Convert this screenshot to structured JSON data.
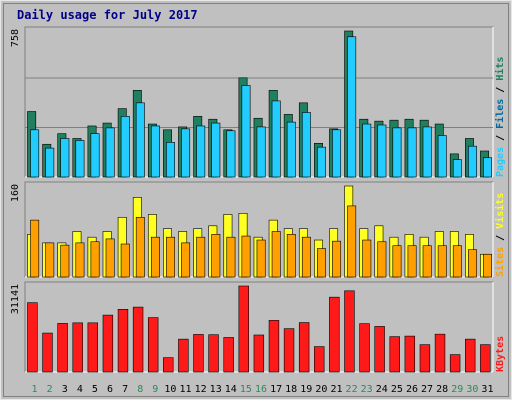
{
  "chart_data": [
    {
      "type": "bar",
      "title": "Daily usage for July 2017",
      "panel": "hits-files-pages",
      "categories": [
        "1",
        "2",
        "3",
        "4",
        "5",
        "6",
        "7",
        "8",
        "9",
        "10",
        "11",
        "12",
        "13",
        "14",
        "15",
        "16",
        "17",
        "18",
        "19",
        "20",
        "21",
        "22",
        "23",
        "24",
        "25",
        "26",
        "27",
        "28",
        "29",
        "30",
        "31"
      ],
      "ymax_label": "758",
      "ylim": [
        0,
        758
      ],
      "grid": true,
      "axis_label_parts": [
        "Pages",
        "Files",
        "Hits"
      ],
      "series": [
        {
          "name": "Hits",
          "color": "#1f7f5f",
          "values": [
            340,
            170,
            225,
            200,
            265,
            280,
            355,
            450,
            275,
            245,
            260,
            315,
            300,
            245,
            515,
            305,
            450,
            325,
            385,
            175,
            250,
            758,
            300,
            290,
            295,
            300,
            295,
            275,
            120,
            200,
            135
          ]
        },
        {
          "name": "Files",
          "color": "#006a9e",
          "values": [
            0,
            0,
            0,
            0,
            0,
            0,
            0,
            0,
            0,
            0,
            0,
            0,
            0,
            0,
            0,
            0,
            0,
            0,
            0,
            0,
            0,
            0,
            0,
            0,
            0,
            0,
            0,
            0,
            0,
            0,
            0
          ]
        },
        {
          "name": "Pages",
          "color": "#22ccff",
          "values": [
            245,
            150,
            200,
            190,
            225,
            255,
            315,
            385,
            265,
            180,
            250,
            265,
            280,
            240,
            475,
            260,
            395,
            285,
            335,
            155,
            245,
            728,
            275,
            270,
            255,
            255,
            260,
            215,
            90,
            160,
            100
          ]
        }
      ],
      "x_highlight_days": [
        "1",
        "2",
        "8",
        "9",
        "15",
        "16",
        "22",
        "23",
        "29",
        "30"
      ],
      "x_highlight_color": "#2a8a5a"
    },
    {
      "type": "bar",
      "panel": "visits-sites",
      "categories": [
        "1",
        "2",
        "3",
        "4",
        "5",
        "6",
        "7",
        "8",
        "9",
        "10",
        "11",
        "12",
        "13",
        "14",
        "15",
        "16",
        "17",
        "18",
        "19",
        "20",
        "21",
        "22",
        "23",
        "24",
        "25",
        "26",
        "27",
        "28",
        "29",
        "30",
        "31"
      ],
      "ymax_label": "160",
      "ylim": [
        0,
        160
      ],
      "axis_label_parts": [
        "Sites",
        "Visits"
      ],
      "series": [
        {
          "name": "Visits",
          "color": "#ffff22",
          "values": [
            75,
            60,
            60,
            80,
            70,
            80,
            105,
            140,
            110,
            85,
            80,
            85,
            90,
            110,
            112,
            70,
            100,
            85,
            85,
            65,
            85,
            160,
            85,
            90,
            70,
            75,
            70,
            80,
            80,
            75,
            40
          ]
        },
        {
          "name": "Sites",
          "color": "#ff9f00",
          "values": [
            100,
            60,
            56,
            60,
            62,
            67,
            58,
            105,
            70,
            70,
            60,
            70,
            75,
            70,
            72,
            65,
            80,
            75,
            70,
            50,
            63,
            125,
            65,
            62,
            55,
            55,
            55,
            55,
            55,
            48,
            40
          ]
        }
      ]
    },
    {
      "type": "bar",
      "panel": "kbytes",
      "categories": [
        "1",
        "2",
        "3",
        "4",
        "5",
        "6",
        "7",
        "8",
        "9",
        "10",
        "11",
        "12",
        "13",
        "14",
        "15",
        "16",
        "17",
        "18",
        "19",
        "20",
        "21",
        "22",
        "23",
        "24",
        "25",
        "26",
        "27",
        "28",
        "29",
        "30",
        "31"
      ],
      "ymax_label": "31141",
      "ylim": [
        0,
        31141
      ],
      "axis_label_parts": [
        "KBytes"
      ],
      "series": [
        {
          "name": "KBytes",
          "color": "#ff1a1a",
          "values": [
            25100,
            14100,
            17600,
            17800,
            17800,
            20600,
            22700,
            23500,
            19700,
            5200,
            11900,
            13600,
            13500,
            12500,
            31141,
            13400,
            18700,
            15700,
            17900,
            9200,
            27100,
            29400,
            17500,
            16500,
            12800,
            13000,
            9900,
            13700,
            6300,
            11900,
            9900
          ]
        }
      ]
    }
  ]
}
